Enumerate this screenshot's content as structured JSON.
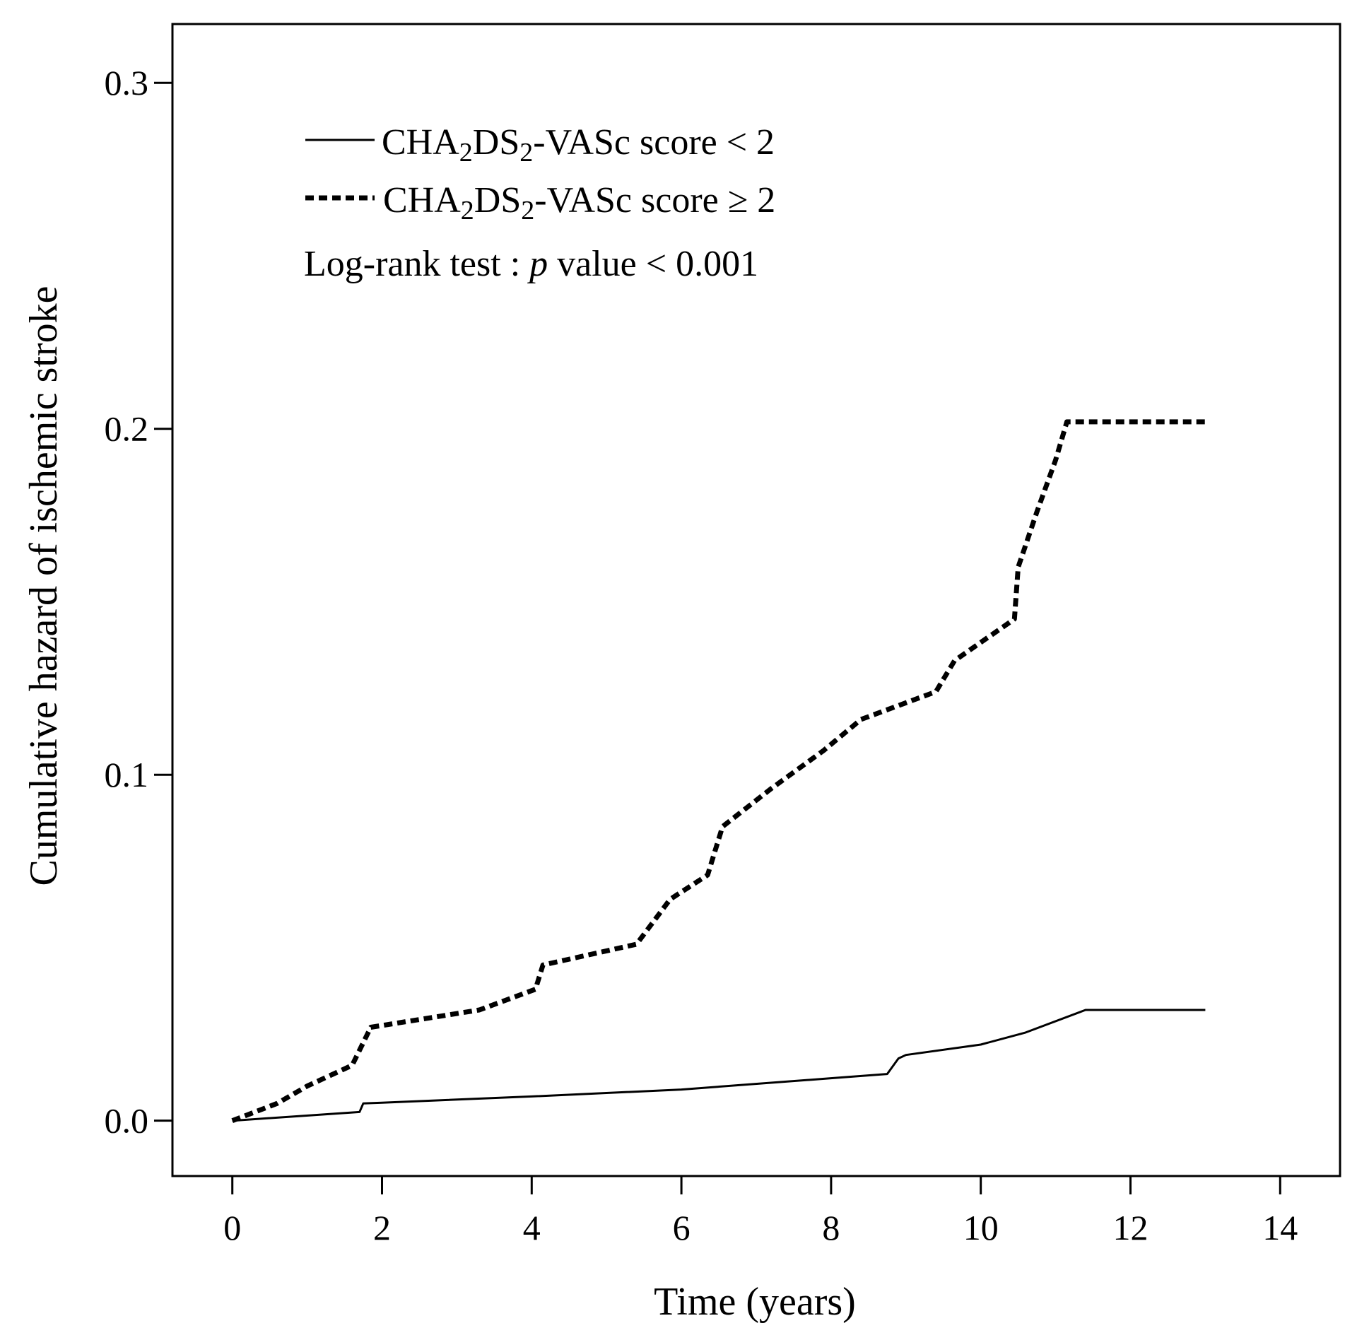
{
  "chart_data": {
    "type": "line",
    "title": "",
    "xlabel": "Time (years)",
    "ylabel": "Cumulative hazard of ischemic stroke",
    "xlim": [
      -0.8,
      14.8
    ],
    "ylim": [
      -0.016,
      0.317
    ],
    "x_ticks": [
      0,
      2,
      4,
      6,
      8,
      10,
      12,
      14
    ],
    "x_tick_labels": [
      "0",
      "2",
      "4",
      "6",
      "8",
      "10",
      "12",
      "14"
    ],
    "y_ticks": [
      0.0,
      0.1,
      0.2,
      0.3
    ],
    "y_tick_labels": [
      "0.0",
      "0.1",
      "0.2",
      "0.3"
    ],
    "grid": false,
    "legend_position": "top-left",
    "series": [
      {
        "name": "CHA2DS2-VASc score < 2",
        "style": "solid",
        "label_parts": {
          "a": "CHA",
          "s1": "2",
          "b": "DS",
          "s2": "2",
          "c": "-VASc score < 2"
        },
        "points": [
          [
            0,
            0.0
          ],
          [
            1.7,
            0.0025
          ],
          [
            1.75,
            0.005
          ],
          [
            2.0,
            0.0052
          ],
          [
            4.0,
            0.007
          ],
          [
            6.0,
            0.009
          ],
          [
            8.75,
            0.0135
          ],
          [
            8.9,
            0.018
          ],
          [
            9.0,
            0.019
          ],
          [
            10.0,
            0.022
          ],
          [
            10.6,
            0.0255
          ],
          [
            11.4,
            0.032
          ],
          [
            13.0,
            0.032
          ]
        ]
      },
      {
        "name": "CHA2DS2-VASc score ≥ 2",
        "style": "dashed",
        "label_parts": {
          "a": "CHA",
          "s1": "2",
          "b": "DS",
          "s2": "2",
          "c": "-VASc score ≥ 2"
        },
        "points": [
          [
            0,
            0.0
          ],
          [
            0.6,
            0.005
          ],
          [
            1.0,
            0.01
          ],
          [
            1.6,
            0.016
          ],
          [
            1.85,
            0.027
          ],
          [
            3.3,
            0.032
          ],
          [
            4.05,
            0.038
          ],
          [
            4.15,
            0.045
          ],
          [
            5.4,
            0.051
          ],
          [
            5.85,
            0.064
          ],
          [
            6.35,
            0.071
          ],
          [
            6.55,
            0.085
          ],
          [
            7.2,
            0.096
          ],
          [
            7.9,
            0.107
          ],
          [
            8.4,
            0.116
          ],
          [
            9.4,
            0.124
          ],
          [
            9.65,
            0.133
          ],
          [
            10.45,
            0.145
          ],
          [
            10.5,
            0.16
          ],
          [
            10.75,
            0.176
          ],
          [
            11.0,
            0.191
          ],
          [
            11.15,
            0.202
          ],
          [
            13.0,
            0.202
          ]
        ]
      }
    ],
    "annotation": {
      "prefix": "Log-rank test : ",
      "p": "p",
      "suffix": " value < 0.001"
    }
  }
}
